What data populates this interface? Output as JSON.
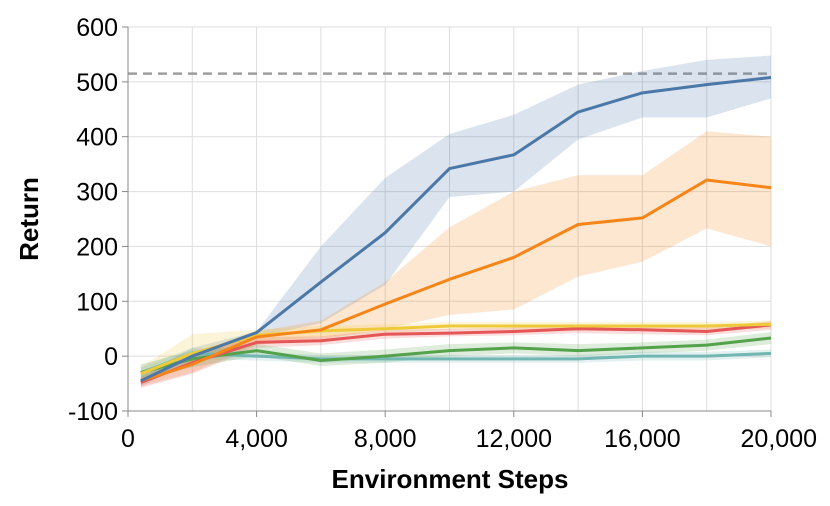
{
  "chart_data": {
    "type": "line",
    "title": "",
    "xlabel": "Environment Steps",
    "ylabel": "Return",
    "xlim": [
      0,
      20000
    ],
    "ylim": [
      -100,
      600
    ],
    "x_ticks": [
      0,
      4000,
      8000,
      12000,
      16000,
      20000
    ],
    "x_tick_labels": [
      "0",
      "4,000",
      "8,000",
      "12,000",
      "16,000",
      "20,000"
    ],
    "y_ticks": [
      -100,
      0,
      100,
      200,
      300,
      400,
      500,
      600
    ],
    "y_tick_labels": [
      "-100",
      "0",
      "100",
      "200",
      "300",
      "400",
      "500",
      "600"
    ],
    "x_gridlines": [
      0,
      2000,
      4000,
      6000,
      8000,
      10000,
      12000,
      14000,
      16000,
      18000,
      20000
    ],
    "y_gridlines": [
      -100,
      0,
      100,
      200,
      300,
      400,
      500,
      600
    ],
    "grid": true,
    "legend": "none",
    "reference_line": {
      "y": 515,
      "style": "dashed",
      "color": "#9e9e9e"
    },
    "x": [
      400,
      2000,
      4000,
      6000,
      8000,
      10000,
      12000,
      14000,
      16000,
      18000,
      20000
    ],
    "series": [
      {
        "color": "#4c78a8",
        "values": [
          -45,
          0,
          43,
          135,
          225,
          342,
          367,
          445,
          480,
          495,
          508
        ],
        "lower": [
          -55,
          -10,
          35,
          60,
          130,
          290,
          300,
          395,
          435,
          435,
          470
        ],
        "upper": [
          -35,
          15,
          45,
          200,
          325,
          405,
          440,
          495,
          520,
          540,
          548
        ]
      },
      {
        "color": "#f58518",
        "values": [
          -45,
          -15,
          35,
          48,
          95,
          140,
          180,
          240,
          252,
          321,
          307
        ],
        "lower": [
          -55,
          -30,
          20,
          30,
          50,
          75,
          85,
          145,
          172,
          233,
          200
        ],
        "upper": [
          -30,
          -5,
          45,
          65,
          135,
          235,
          300,
          330,
          330,
          410,
          400
        ]
      },
      {
        "color": "#eeca3b",
        "values": [
          -32,
          5,
          38,
          46,
          50,
          55,
          55,
          55,
          55,
          55,
          58
        ],
        "lower": [
          -45,
          -10,
          25,
          35,
          42,
          48,
          48,
          48,
          48,
          48,
          50
        ],
        "upper": [
          -20,
          40,
          48,
          55,
          58,
          62,
          62,
          62,
          62,
          62,
          65
        ]
      },
      {
        "color": "#e45756",
        "values": [
          -48,
          -12,
          25,
          28,
          40,
          42,
          45,
          50,
          48,
          45,
          57
        ],
        "lower": [
          -58,
          -32,
          15,
          20,
          32,
          36,
          38,
          42,
          40,
          38,
          48
        ],
        "upper": [
          -38,
          5,
          35,
          36,
          48,
          50,
          52,
          58,
          56,
          52,
          64
        ]
      },
      {
        "color": "#54a24b",
        "values": [
          -30,
          -5,
          10,
          -8,
          0,
          10,
          15,
          10,
          15,
          20,
          33
        ],
        "lower": [
          -45,
          -20,
          0,
          -18,
          -12,
          0,
          5,
          0,
          5,
          10,
          22
        ],
        "upper": [
          -15,
          10,
          22,
          5,
          12,
          22,
          25,
          22,
          25,
          30,
          44
        ]
      },
      {
        "color": "#72b7b2",
        "values": [
          -30,
          5,
          0,
          -5,
          -5,
          -5,
          -5,
          -5,
          0,
          0,
          5
        ],
        "lower": [
          -40,
          -5,
          -8,
          -12,
          -12,
          -12,
          -12,
          -12,
          -8,
          -8,
          -2
        ],
        "upper": [
          -20,
          15,
          8,
          2,
          2,
          2,
          2,
          2,
          8,
          8,
          12
        ]
      }
    ]
  }
}
